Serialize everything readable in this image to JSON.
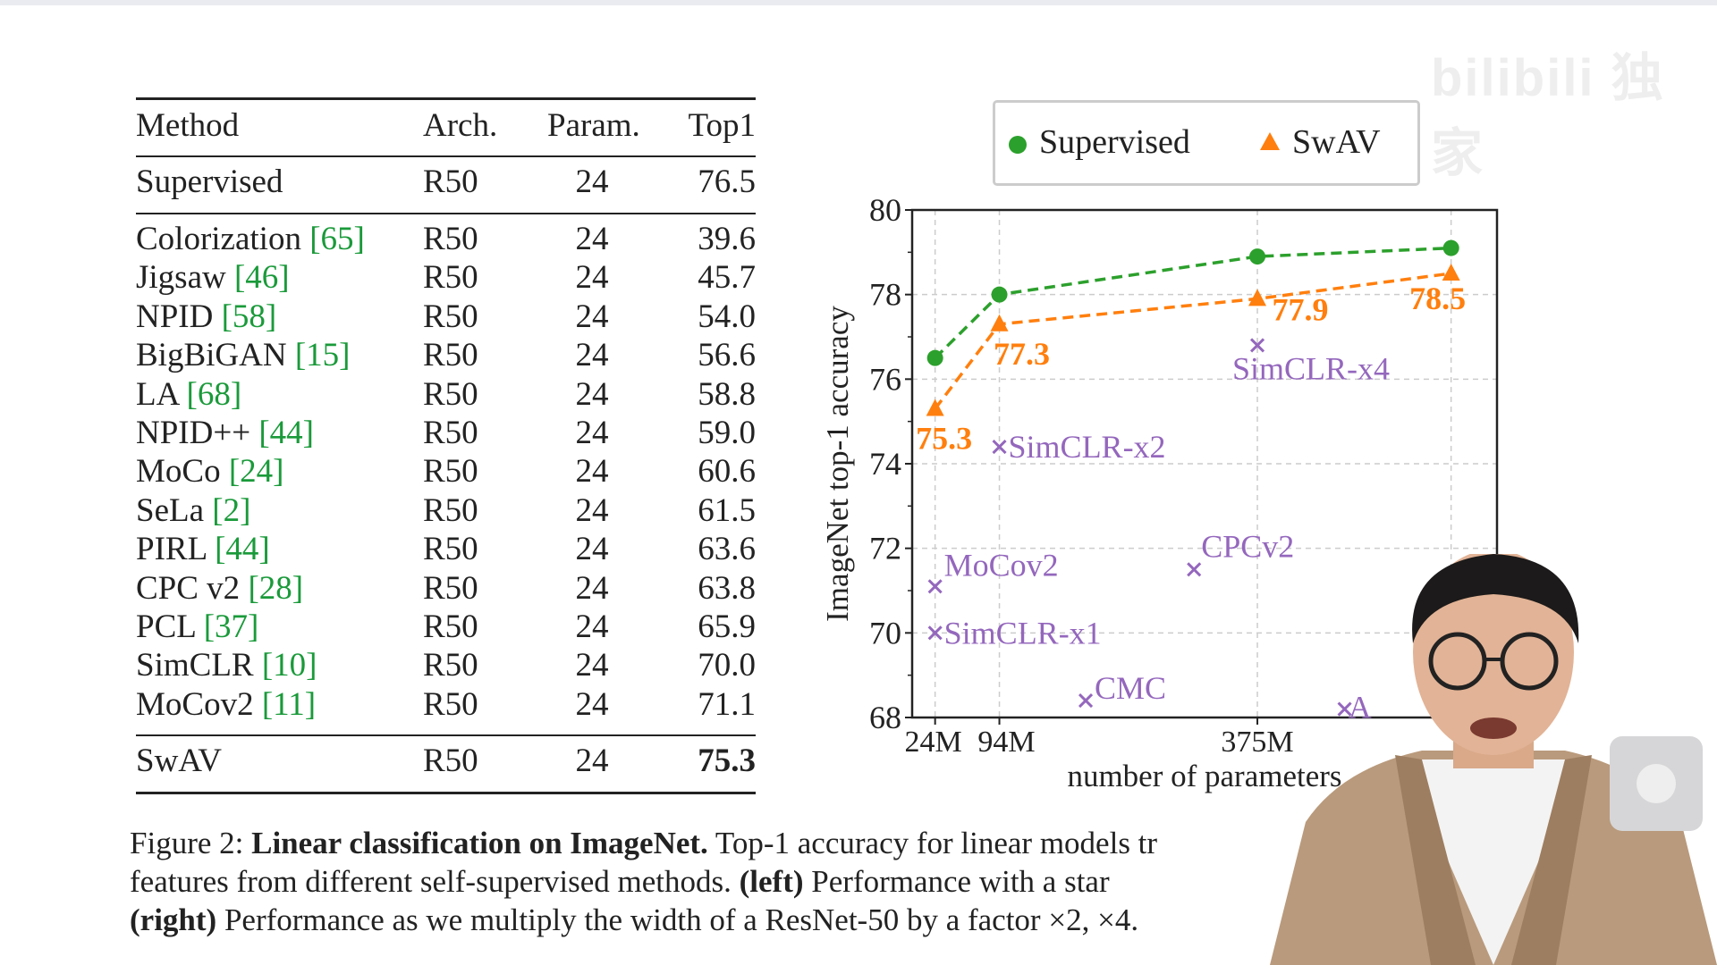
{
  "table": {
    "headers": [
      "Method",
      "Arch.",
      "Param.",
      "Top1"
    ],
    "supervised": {
      "method": "Supervised",
      "arch": "R50",
      "param": "24",
      "top1": "76.5"
    },
    "rows": [
      {
        "method": "Colorization ",
        "ref": "[65]",
        "arch": "R50",
        "param": "24",
        "top1": "39.6"
      },
      {
        "method": "Jigsaw ",
        "ref": "[46]",
        "arch": "R50",
        "param": "24",
        "top1": "45.7"
      },
      {
        "method": "NPID ",
        "ref": "[58]",
        "arch": "R50",
        "param": "24",
        "top1": "54.0"
      },
      {
        "method": "BigBiGAN ",
        "ref": "[15]",
        "arch": "R50",
        "param": "24",
        "top1": "56.6"
      },
      {
        "method": "LA ",
        "ref": "[68]",
        "arch": "R50",
        "param": "24",
        "top1": "58.8"
      },
      {
        "method": "NPID++ ",
        "ref": "[44]",
        "arch": "R50",
        "param": "24",
        "top1": "59.0"
      },
      {
        "method": "MoCo ",
        "ref": "[24]",
        "arch": "R50",
        "param": "24",
        "top1": "60.6"
      },
      {
        "method": "SeLa ",
        "ref": "[2]",
        "arch": "R50",
        "param": "24",
        "top1": "61.5"
      },
      {
        "method": "PIRL ",
        "ref": "[44]",
        "arch": "R50",
        "param": "24",
        "top1": "63.6"
      },
      {
        "method": "CPC v2 ",
        "ref": "[28]",
        "arch": "R50",
        "param": "24",
        "top1": "63.8"
      },
      {
        "method": "PCL ",
        "ref": "[37]",
        "arch": "R50",
        "param": "24",
        "top1": "65.9"
      },
      {
        "method": "SimCLR ",
        "ref": "[10]",
        "arch": "R50",
        "param": "24",
        "top1": "70.0"
      },
      {
        "method": "MoCov2 ",
        "ref": "[11]",
        "arch": "R50",
        "param": "24",
        "top1": "71.1"
      }
    ],
    "swav": {
      "method": "SwAV",
      "arch": "R50",
      "param": "24",
      "top1": "75.3"
    }
  },
  "chart_data": {
    "type": "line",
    "xlabel": "number of parameters",
    "ylabel": "ImageNet top-1 accuracy",
    "x_unit": "M params",
    "xlim": [
      -1,
      636
    ],
    "ylim": [
      68,
      80
    ],
    "yticks": [
      68,
      70,
      72,
      74,
      76,
      78,
      80
    ],
    "xticks": [
      {
        "value": 24,
        "label": "24M"
      },
      {
        "value": 94,
        "label": "94M"
      },
      {
        "value": 375,
        "label": "375M"
      },
      {
        "value": 586,
        "label": ""
      }
    ],
    "grid": true,
    "legend_placement": "top",
    "series": [
      {
        "name": "Supervised",
        "marker": "circle",
        "color": "#2ca02c",
        "x": [
          24,
          94,
          375,
          586
        ],
        "y": [
          76.5,
          78.0,
          78.9,
          79.1
        ]
      },
      {
        "name": "SwAV",
        "marker": "triangle",
        "color": "#ff7f0e",
        "x": [
          24,
          94,
          375,
          586
        ],
        "y": [
          75.3,
          77.3,
          77.9,
          78.5
        ],
        "labels": [
          "75.3",
          "77.3",
          "77.9",
          "78.5"
        ]
      }
    ],
    "others": {
      "color": "#9467bd",
      "points": [
        {
          "label": "MoCov2",
          "x": 24,
          "y": 71.1
        },
        {
          "label": "SimCLR-x1",
          "x": 24,
          "y": 70.0
        },
        {
          "label": "SimCLR-x2",
          "x": 94,
          "y": 74.4
        },
        {
          "label": "SimCLR-x4",
          "x": 375,
          "y": 76.8
        },
        {
          "label": "CPCv2",
          "x": 306,
          "y": 71.5
        },
        {
          "label": "CMC",
          "x": 188,
          "y": 68.4
        },
        {
          "label": "A",
          "x": 470,
          "y": 68.2
        }
      ]
    }
  },
  "caption": {
    "prefix": "Figure 2: ",
    "bold_title": "Linear classification on ImageNet.",
    "line1_rest": " Top-1 accuracy for linear models tr",
    "line2_a": "features from different self-supervised methods. ",
    "left_bold": "(left)",
    "line2_b": " Performance with a star",
    "right_bold": "(right)",
    "line3_rest": " Performance as we multiply the width of a ResNet-50 by a factor ×2, ×4."
  },
  "watermark": "bilibili 独家"
}
